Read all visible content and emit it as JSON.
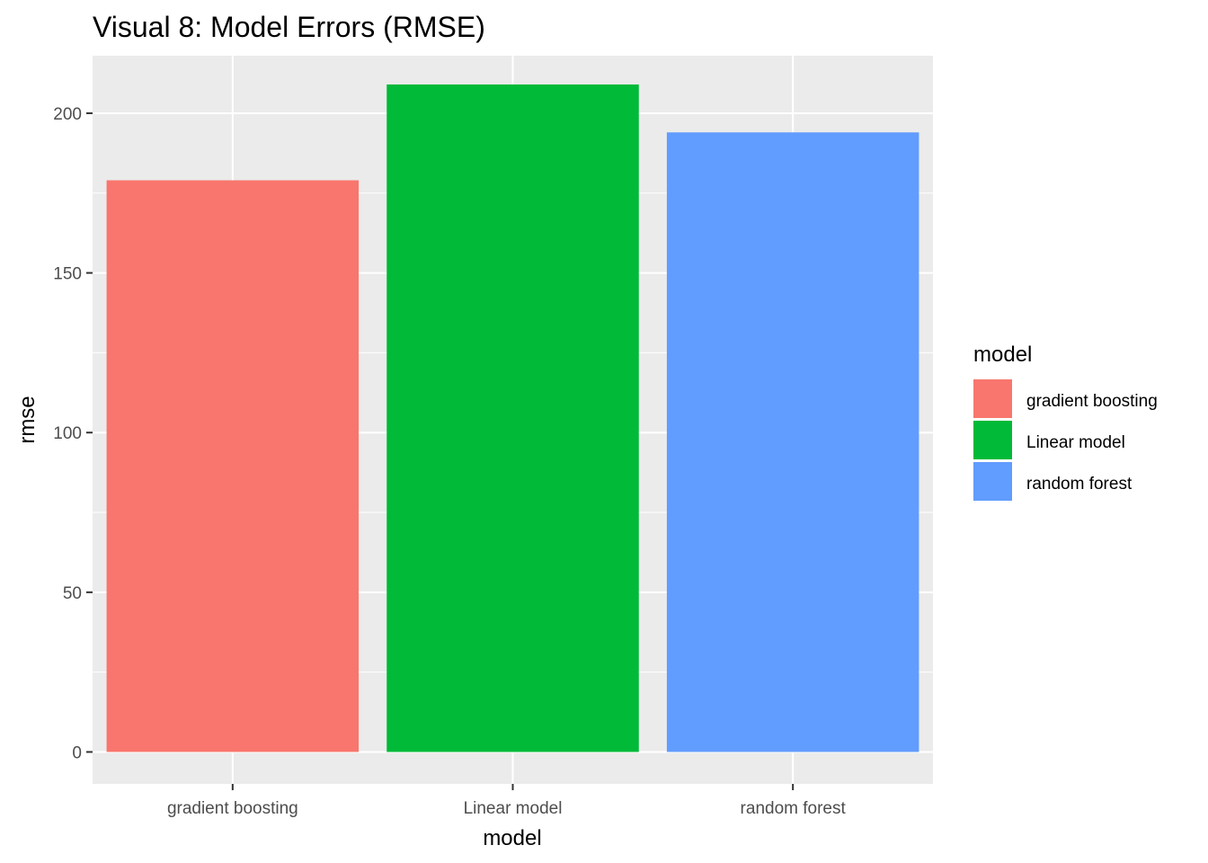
{
  "chart_data": {
    "type": "bar",
    "title": "Visual 8: Model Errors (RMSE)",
    "xlabel": "model",
    "ylabel": "rmse",
    "categories": [
      "gradient boosting",
      "Linear model",
      "random forest"
    ],
    "values": [
      179,
      209,
      194
    ],
    "colors": [
      "#F8766D",
      "#00BA38",
      "#619CFF"
    ],
    "ylim": [
      -10,
      218
    ],
    "yticks": [
      0,
      50,
      100,
      150,
      200
    ],
    "ytick_labels": [
      "0",
      "50",
      "100",
      "150",
      "200"
    ],
    "grid": true,
    "panel_background": "#EBEBEB",
    "legend": {
      "title": "model",
      "position": "right",
      "entries": [
        "gradient boosting",
        "Linear model",
        "random forest"
      ]
    }
  }
}
